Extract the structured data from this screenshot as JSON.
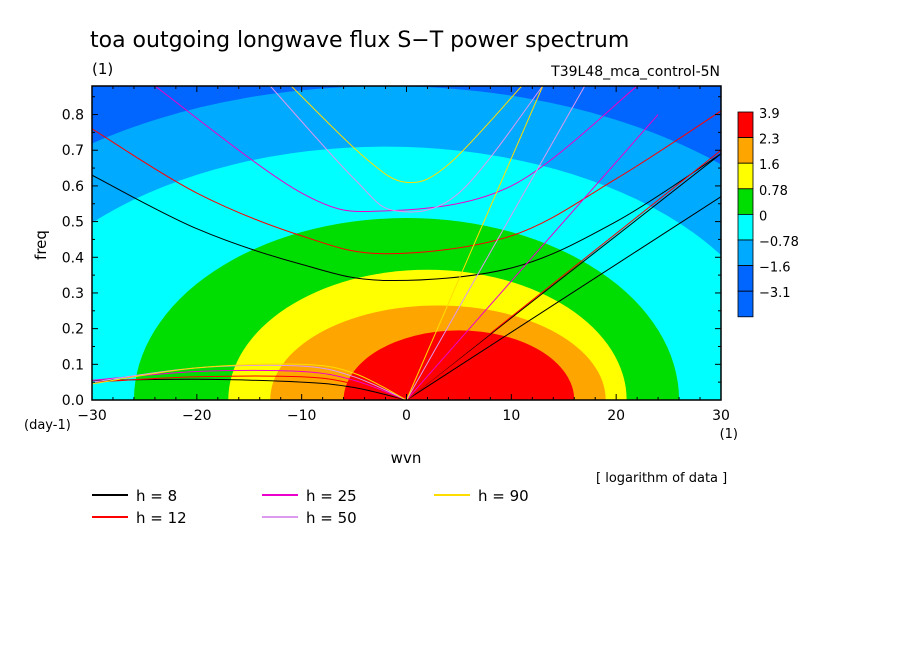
{
  "chart_data": {
    "type": "heatmap",
    "title": "toa outgoing longwave flux S−T power spectrum",
    "subtitle_left": "(1)",
    "run_label": "T39L48_mca_control-5N",
    "xlabel": "wvn",
    "ylabel": "freq",
    "x_unit": "(1)",
    "y_unit": "(day-1)",
    "xlim": [
      -30,
      30
    ],
    "ylim": [
      0,
      0.88
    ],
    "x_ticks": [
      {
        "value": -30,
        "label": "−30"
      },
      {
        "value": -20,
        "label": "−20"
      },
      {
        "value": -10,
        "label": "−10"
      },
      {
        "value": 0,
        "label": "0"
      },
      {
        "value": 10,
        "label": "10"
      },
      {
        "value": 20,
        "label": "20"
      },
      {
        "value": 30,
        "label": "30"
      }
    ],
    "y_ticks": [
      {
        "value": 0.0,
        "label": "0.0"
      },
      {
        "value": 0.1,
        "label": "0.1"
      },
      {
        "value": 0.2,
        "label": "0.2"
      },
      {
        "value": 0.3,
        "label": "0.3"
      },
      {
        "value": 0.4,
        "label": "0.4"
      },
      {
        "value": 0.5,
        "label": "0.5"
      },
      {
        "value": 0.6,
        "label": "0.6"
      },
      {
        "value": 0.7,
        "label": "0.7"
      },
      {
        "value": 0.8,
        "label": "0.8"
      }
    ],
    "colorbar": {
      "note": "[ logarithm of data ]",
      "levels": [
        {
          "label": "3.9",
          "color": "#ff0000"
        },
        {
          "label": "2.3",
          "color": "#ffa500"
        },
        {
          "label": "1.6",
          "color": "#ffff00"
        },
        {
          "label": "0.78",
          "color": "#00dd00"
        },
        {
          "label": "0",
          "color": "#00ffff"
        },
        {
          "label": "−0.78",
          "color": "#00aaff"
        },
        {
          "label": "−1.6",
          "color": "#0066ff"
        },
        {
          "label": "−3.1",
          "color": "#0066ff"
        }
      ]
    },
    "contour_regions": [
      {
        "level": "red",
        "color": "#ff0000",
        "center": [
          5,
          0
        ],
        "rx": 11,
        "ry": 0.195
      },
      {
        "level": "orange",
        "color": "#ffa500",
        "center": [
          3,
          0
        ],
        "rx": 16,
        "ry": 0.265
      },
      {
        "level": "yellow",
        "color": "#ffff00",
        "center": [
          2,
          0
        ],
        "rx": 19,
        "ry": 0.365
      },
      {
        "level": "green",
        "color": "#00dd00",
        "center": [
          0,
          0
        ],
        "rx": 26,
        "ry": 0.51
      },
      {
        "level": "cyan",
        "color": "#00ffff",
        "center": [
          -2,
          0.05
        ],
        "rx": 38,
        "ry": 0.66
      },
      {
        "level": "lightblue",
        "color": "#00aaff",
        "center": [
          -2,
          0.1
        ],
        "rx": 46,
        "ry": 0.78
      }
    ],
    "legend": [
      {
        "label": "h =  8",
        "color": "#000000"
      },
      {
        "label": "h = 12",
        "color": "#ff0000"
      },
      {
        "label": "h = 25",
        "color": "#ee00cc"
      },
      {
        "label": "h = 50",
        "color": "#dd99ee"
      },
      {
        "label": "h = 90",
        "color": "#ffdd00"
      }
    ],
    "dispersion_curves": [
      {
        "h": 8,
        "color": "#000000",
        "kelvin": [
          [
            0,
            0
          ],
          [
            30,
            0.57
          ]
        ],
        "kelvin2": [
          [
            0,
            0
          ],
          [
            30,
            0.69
          ]
        ],
        "ig": [
          [
            -30,
            0.63
          ],
          [
            -20,
            0.48
          ],
          [
            -10,
            0.38
          ],
          [
            -2,
            0.335
          ],
          [
            10,
            0.37
          ],
          [
            20,
            0.5
          ],
          [
            30,
            0.69
          ]
        ],
        "rossby": [
          [
            -30,
            0.055
          ],
          [
            -20,
            0.058
          ],
          [
            -10,
            0.05
          ],
          [
            -5,
            0.035
          ],
          [
            0,
            0
          ]
        ]
      },
      {
        "h": 12,
        "color": "#ff0000",
        "kelvin": [
          [
            0,
            0
          ],
          [
            30,
            0.7
          ]
        ],
        "ig": [
          [
            -30,
            0.76
          ],
          [
            -20,
            0.58
          ],
          [
            -10,
            0.46
          ],
          [
            -2,
            0.41
          ],
          [
            10,
            0.46
          ],
          [
            20,
            0.62
          ],
          [
            30,
            0.81
          ]
        ],
        "rossby": [
          [
            -30,
            0.05
          ],
          [
            -20,
            0.065
          ],
          [
            -10,
            0.065
          ],
          [
            -5,
            0.045
          ],
          [
            0,
            0
          ]
        ]
      },
      {
        "h": 25,
        "color": "#ee00cc",
        "kelvin": [
          [
            0,
            0
          ],
          [
            24,
            0.8
          ]
        ],
        "ig": [
          [
            -24,
            0.88
          ],
          [
            -10,
            0.58
          ],
          [
            -2,
            0.53
          ],
          [
            10,
            0.6
          ],
          [
            22,
            0.88
          ]
        ],
        "rossby": [
          [
            -30,
            0.055
          ],
          [
            -20,
            0.08
          ],
          [
            -10,
            0.08
          ],
          [
            -5,
            0.055
          ],
          [
            0,
            0
          ]
        ]
      },
      {
        "h": 50,
        "color": "#dd99ee",
        "kelvin": [
          [
            0,
            0
          ],
          [
            17,
            0.88
          ]
        ],
        "ig": [
          [
            -13,
            0.88
          ],
          [
            -5,
            0.62
          ],
          [
            -1,
            0.53
          ],
          [
            5,
            0.58
          ],
          [
            13,
            0.88
          ]
        ],
        "rossby": [
          [
            -30,
            0.05
          ],
          [
            -20,
            0.09
          ],
          [
            -10,
            0.095
          ],
          [
            -5,
            0.065
          ],
          [
            0,
            0
          ]
        ]
      },
      {
        "h": 90,
        "color": "#ffdd00",
        "kelvin": [
          [
            0,
            0
          ],
          [
            13,
            0.88
          ]
        ],
        "ig": [
          [
            -11,
            0.88
          ],
          [
            -4,
            0.68
          ],
          [
            0,
            0.61
          ],
          [
            4,
            0.66
          ],
          [
            11,
            0.88
          ]
        ],
        "rossby": [
          [
            -30,
            0.045
          ],
          [
            -20,
            0.09
          ],
          [
            -10,
            0.1
          ],
          [
            -5,
            0.075
          ],
          [
            0,
            0
          ]
        ]
      }
    ]
  }
}
